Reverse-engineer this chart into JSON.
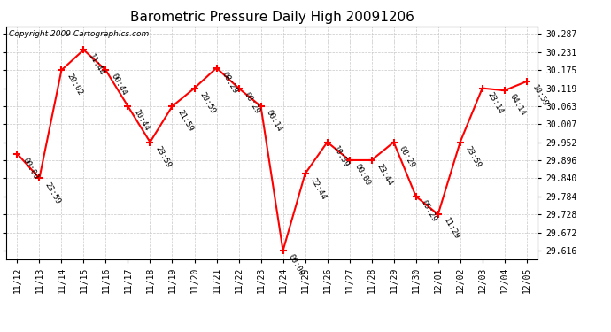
{
  "title": "Barometric Pressure Daily High 20091206",
  "copyright": "Copyright 2009 Cartographics.com",
  "x_labels": [
    "11/12",
    "11/13",
    "11/14",
    "11/15",
    "11/16",
    "11/17",
    "11/18",
    "11/19",
    "11/20",
    "11/21",
    "11/22",
    "11/23",
    "11/24",
    "11/25",
    "11/26",
    "11/27",
    "11/28",
    "11/29",
    "11/30",
    "12/01",
    "12/02",
    "12/03",
    "12/04",
    "12/05"
  ],
  "y_values": [
    29.916,
    29.84,
    30.175,
    30.238,
    30.175,
    30.063,
    29.952,
    30.063,
    30.119,
    30.182,
    30.119,
    30.063,
    29.616,
    29.854,
    29.952,
    29.896,
    29.896,
    29.952,
    29.784,
    29.728,
    29.952,
    30.119,
    30.112,
    30.14
  ],
  "point_labels": [
    "00:00",
    "23:59",
    "20:02",
    "11:44",
    "00:44",
    "10:44",
    "23:59",
    "21:59",
    "20:59",
    "08:29",
    "08:29",
    "00:14",
    "00:00",
    "22:44",
    "10:59",
    "00:00",
    "23:44",
    "08:29",
    "05:29",
    "11:29",
    "23:59",
    "23:14",
    "04:14",
    "10:59"
  ],
  "y_ticks": [
    29.616,
    29.672,
    29.728,
    29.784,
    29.84,
    29.896,
    29.952,
    30.007,
    30.063,
    30.119,
    30.175,
    30.231,
    30.287
  ],
  "ylim": [
    29.59,
    30.31
  ],
  "line_color": "red",
  "marker_color": "red",
  "grid_color": "#c8c8c8",
  "bg_color": "#ffffff",
  "plot_bg_color": "#ffffff",
  "title_fontsize": 11,
  "copyright_fontsize": 6.5,
  "label_fontsize": 6.5,
  "tick_fontsize": 7
}
